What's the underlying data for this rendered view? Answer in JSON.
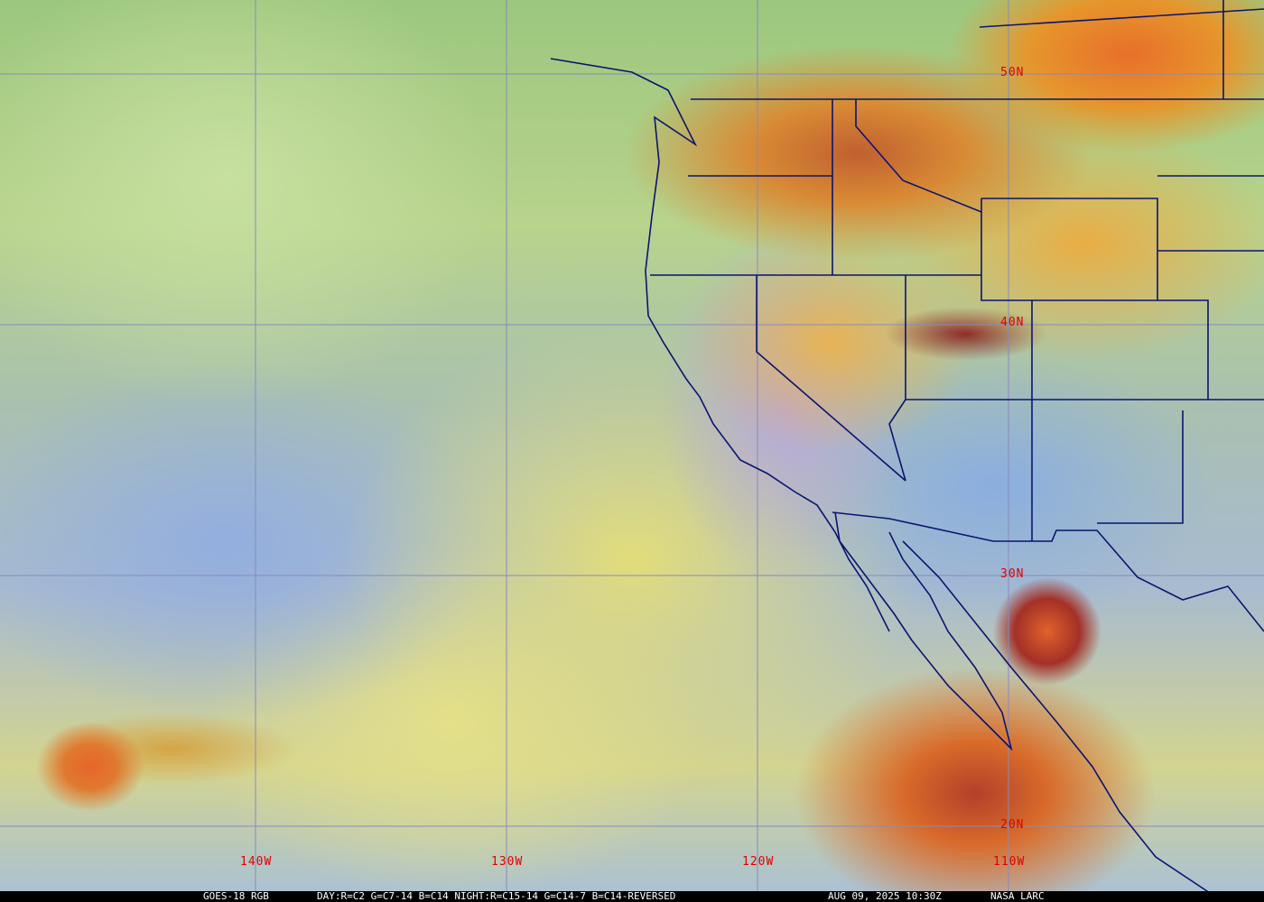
{
  "map": {
    "latitude_labels": [
      "50N",
      "40N",
      "30N",
      "20N"
    ],
    "longitude_labels": [
      "140W",
      "130W",
      "120W",
      "110W"
    ],
    "colors": {
      "grid": "#8a8ab8",
      "borders": "#0a1470",
      "labels": "#e00000",
      "caption_bg": "#000000",
      "caption_text": "#ffffff"
    }
  },
  "caption": {
    "product": "GOES-18 RGB",
    "recipe": "DAY:R=C2 G=C7-14 B=C14 NIGHT:R=C15-14 G=C14-7 B=C14-REVERSED",
    "datetime": "AUG 09, 2025 10:30Z",
    "source": "NASA LARC"
  }
}
